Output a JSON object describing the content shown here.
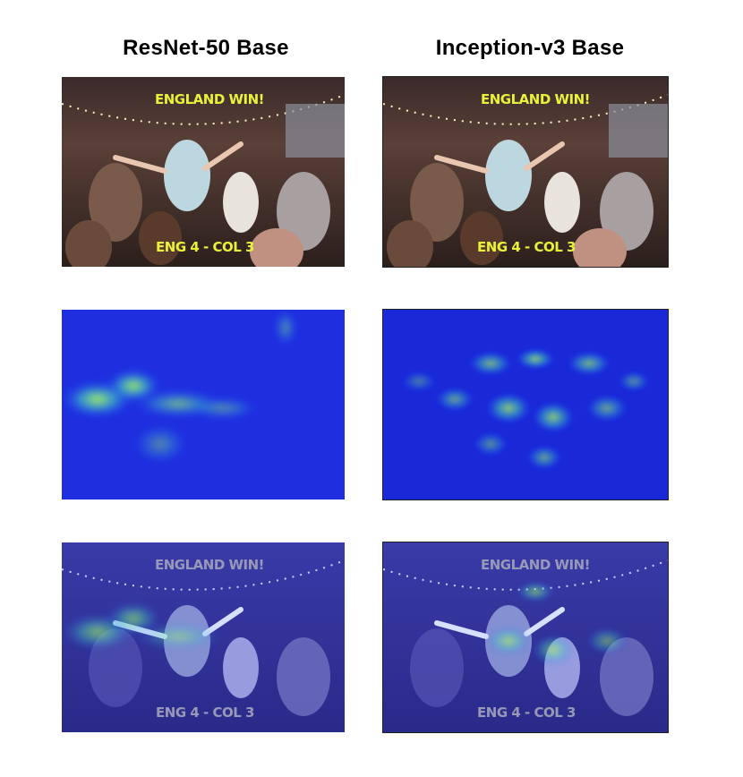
{
  "columns": [
    {
      "title": "ResNet-50 Base"
    },
    {
      "title": "Inception-v3 Base"
    }
  ],
  "scene_text": {
    "top_banner": "ENGLAND WIN!",
    "score": "ENG 4 - COL 3"
  },
  "colors": {
    "banner_text": "#e8f23a",
    "heatmap_low": "#1f2fe0",
    "heatmap_high": "#a8ff40"
  }
}
